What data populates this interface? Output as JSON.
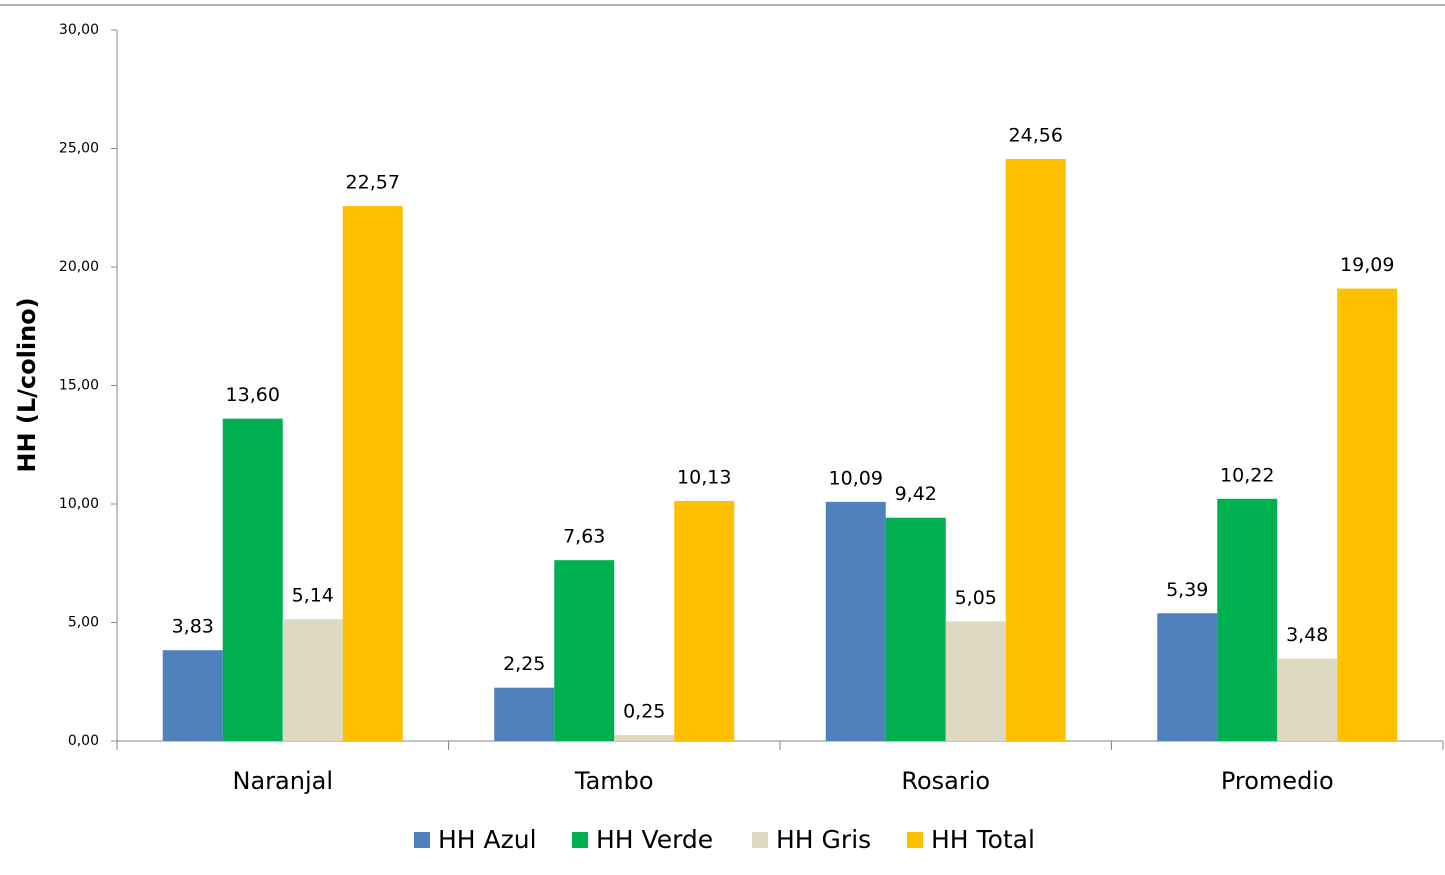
{
  "chart_data": {
    "type": "bar",
    "ylabel": "HH (L/colino)",
    "categories": [
      "Naranjal",
      "Tambo",
      "Rosario",
      "Promedio"
    ],
    "series": [
      {
        "name": "HH Azul",
        "color": "#4f81bd",
        "values": [
          3.83,
          2.25,
          10.09,
          5.39
        ],
        "value_labels": [
          "3,83",
          "2,25",
          "10,09",
          "5,39"
        ]
      },
      {
        "name": "HH Verde",
        "color": "#00b050",
        "values": [
          13.6,
          7.63,
          9.42,
          10.22
        ],
        "value_labels": [
          "13,60",
          "7,63",
          "9,42",
          "10,22"
        ]
      },
      {
        "name": "HH Gris",
        "color": "#ddd9c3",
        "values": [
          5.14,
          0.25,
          5.05,
          3.48
        ],
        "value_labels": [
          "5,14",
          "0,25",
          "5,05",
          "3,48"
        ]
      },
      {
        "name": "HH Total",
        "color": "#ffc000",
        "values": [
          22.57,
          10.13,
          24.56,
          19.09
        ],
        "value_labels": [
          "22,57",
          "10,13",
          "24,56",
          "19,09"
        ]
      }
    ],
    "ylim": [
      0,
      30
    ],
    "yticks": [
      {
        "value": 0,
        "label": "0,00"
      },
      {
        "value": 5,
        "label": "5,00"
      },
      {
        "value": 10,
        "label": "10,00"
      },
      {
        "value": 15,
        "label": "15,00"
      },
      {
        "value": 20,
        "label": "20,00"
      },
      {
        "value": 25,
        "label": "25,00"
      },
      {
        "value": 30,
        "label": "30,00"
      }
    ],
    "legend": "bottom"
  }
}
